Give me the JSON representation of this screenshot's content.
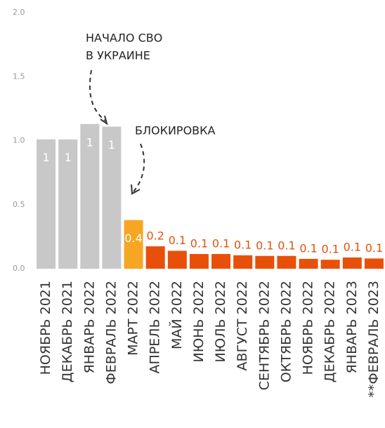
{
  "chart_data": {
    "type": "bar",
    "categories": [
      "НОЯБРЬ 2021",
      "ДЕКАБРЬ 2021",
      "ЯНВАРЬ 2022",
      "ФЕВРАЛЬ 2022",
      "МАРТ 2022",
      "АПРЕЛЬ 2022",
      "МАЙ 2022",
      "ИЮНЬ 2022",
      "ИЮЛЬ 2022",
      "АВГУСТ 2022",
      "СЕНТЯБРЬ 2022",
      "ОКТЯБРЬ 2022",
      "НОЯБРЬ 2022",
      "ДЕКАБРЬ 2022",
      "ЯНВАРЬ 2023",
      "**ФЕВРАЛЬ 2023"
    ],
    "values": [
      1.01,
      1.01,
      1.13,
      1.11,
      0.38,
      0.175,
      0.14,
      0.115,
      0.115,
      0.105,
      0.1,
      0.1,
      0.077,
      0.07,
      0.088,
      0.08
    ],
    "value_labels": [
      "1",
      "1",
      "1",
      "1",
      "0.4",
      "0.2",
      "0.1",
      "0.1",
      "0.1",
      "0.1",
      "0.1",
      "0.1",
      "0.1",
      "0.1",
      "0.1",
      "0.1"
    ],
    "colors": [
      "#c8c8c8",
      "#c8c8c8",
      "#c8c8c8",
      "#c8c8c8",
      "#f5a623",
      "#e8500a",
      "#e8500a",
      "#e8500a",
      "#e8500a",
      "#e8500a",
      "#e8500a",
      "#e8500a",
      "#e8500a",
      "#e8500a",
      "#e8500a",
      "#e8500a"
    ],
    "ylim": [
      0,
      2
    ],
    "yticks": [
      {
        "value": 0,
        "label": "0.0"
      },
      0.5,
      {
        "value": 1,
        "label": "1.0"
      },
      1.5,
      {
        "value": 2,
        "label": "2.0"
      }
    ],
    "grid": false,
    "annotations": [
      {
        "lines": [
          "НАЧАЛО СВО",
          "В УКРАИНЕ"
        ]
      },
      {
        "lines": [
          "БЛОКИРОВКА"
        ]
      }
    ]
  }
}
